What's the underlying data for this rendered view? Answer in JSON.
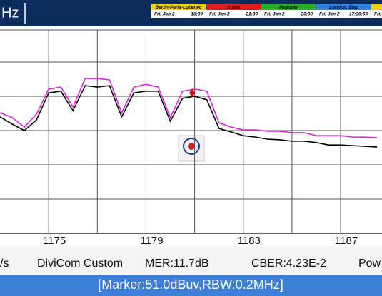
{
  "header": {
    "unit": "Hz",
    "clocks": [
      {
        "city": "Berlin-Paris-Lučenec",
        "day": "Fri, Jan 2",
        "time": "18:30",
        "color": "#f2d200"
      },
      {
        "city": "Dubai",
        "day": "Fri, Jan 2",
        "time": "21:30",
        "color": "#e0201c"
      },
      {
        "city": "Moscow",
        "day": "Fri, Jan 2",
        "time": "20:30",
        "color": "#22b022"
      },
      {
        "city": "London, Eng",
        "day": "Fri, Jan 2",
        "time": "17:30:56",
        "color": "#2a7fe0"
      },
      {
        "city": "Jo",
        "day": "Fri,",
        "time": "",
        "color": "#f2d200"
      }
    ]
  },
  "chart_data": {
    "type": "line",
    "x": [
      1173,
      1173.5,
      1174,
      1174.5,
      1175,
      1175.5,
      1176,
      1176.5,
      1177,
      1177.5,
      1178,
      1178.5,
      1179,
      1179.5,
      1180,
      1180.5,
      1181,
      1181.5,
      1182,
      1182.5,
      1183,
      1183.5,
      1184,
      1184.5,
      1185,
      1185.5,
      1186,
      1186.5,
      1187,
      1187.5,
      1188,
      1188.5
    ],
    "series": [
      {
        "color": "#e020e0",
        "values": [
          45.2,
          43.8,
          41.0,
          44.8,
          52.1,
          52.7,
          46.9,
          55.2,
          55.2,
          54.8,
          45.2,
          52.7,
          53.5,
          52.7,
          43.8,
          51.5,
          52.1,
          51.5,
          42.3,
          41.0,
          40.2,
          40.2,
          39.8,
          39.8,
          39.4,
          39.4,
          38.5,
          38.5,
          38.5,
          38.1,
          38.1,
          37.9
        ]
      },
      {
        "color": "#000000",
        "values": [
          44.0,
          41.9,
          40.0,
          43.1,
          51.0,
          51.5,
          45.8,
          53.1,
          52.7,
          53.1,
          44.0,
          51.0,
          51.5,
          51.5,
          42.7,
          49.4,
          50.0,
          49.0,
          40.6,
          39.6,
          38.5,
          38.1,
          37.5,
          37.3,
          36.9,
          36.9,
          36.5,
          35.8,
          35.8,
          35.6,
          35.4,
          35.2
        ]
      }
    ],
    "marker": {
      "x": 1180.9,
      "y": 51.0,
      "color": "#e00000"
    },
    "xlim": [
      1173,
      1188.7
    ],
    "ylim": [
      10,
      70
    ],
    "xticks": [
      1175,
      1179,
      1183,
      1187
    ],
    "xgrid": [
      1177,
      1181,
      1185
    ],
    "ygrid": [
      20,
      30,
      40,
      50,
      60
    ]
  },
  "status": {
    "items": [
      "/s",
      "DiviCom Custom",
      "MER:11.7dB",
      "CBER:4.23E-2",
      "Pow"
    ],
    "marker_info": "[Marker:51.0dBuv,RBW:0.2MHz]"
  }
}
